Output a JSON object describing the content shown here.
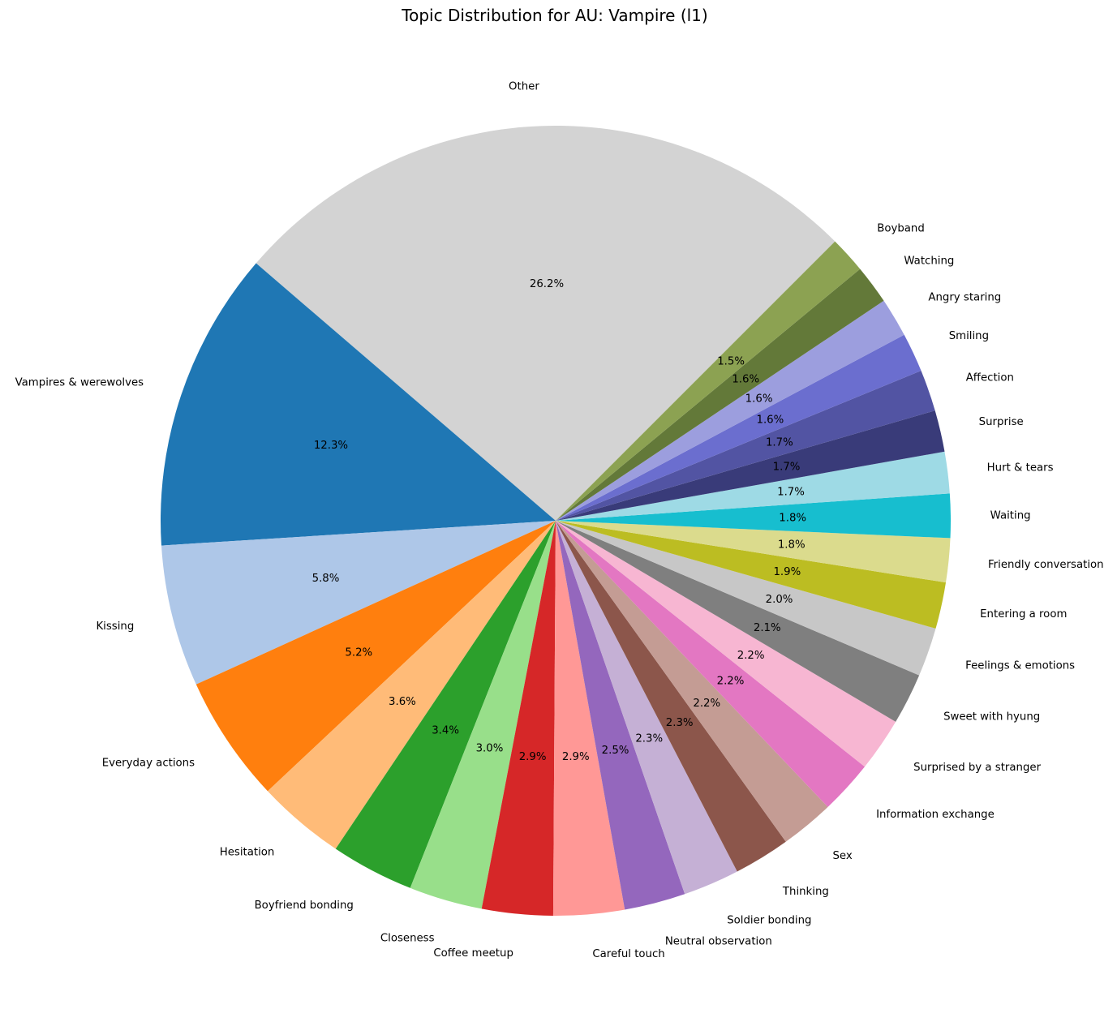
{
  "chart_data": {
    "type": "pie",
    "title": "Topic Distribution for AU: Vampire (l1)",
    "start_angle_deg": 45,
    "direction": "counterclockwise",
    "slices": [
      {
        "label": "Other",
        "value": 26.2,
        "pct_label": "26.2%",
        "color": "#d3d3d3"
      },
      {
        "label": "Vampires & werewolves",
        "value": 12.3,
        "pct_label": "12.3%",
        "color": "#1f77b4"
      },
      {
        "label": "Kissing",
        "value": 5.8,
        "pct_label": "5.8%",
        "color": "#aec7e8"
      },
      {
        "label": "Everyday actions",
        "value": 5.2,
        "pct_label": "5.2%",
        "color": "#ff7f0e"
      },
      {
        "label": "Hesitation",
        "value": 3.6,
        "pct_label": "3.6%",
        "color": "#ffbb78"
      },
      {
        "label": "Boyfriend bonding",
        "value": 3.4,
        "pct_label": "3.4%",
        "color": "#2ca02c"
      },
      {
        "label": "Closeness",
        "value": 3.0,
        "pct_label": "3.0%",
        "color": "#98df8a"
      },
      {
        "label": "Coffee meetup",
        "value": 2.9,
        "pct_label": "2.9%",
        "color": "#d62728"
      },
      {
        "label": "Careful touch",
        "value": 2.9,
        "pct_label": "2.9%",
        "color": "#ff9896"
      },
      {
        "label": "Neutral observation",
        "value": 2.5,
        "pct_label": "2.5%",
        "color": "#9467bd"
      },
      {
        "label": "Soldier bonding",
        "value": 2.3,
        "pct_label": "2.3%",
        "color": "#c5b0d5"
      },
      {
        "label": "Thinking",
        "value": 2.3,
        "pct_label": "2.3%",
        "color": "#8c564b"
      },
      {
        "label": "Sex",
        "value": 2.2,
        "pct_label": "2.2%",
        "color": "#c49c94"
      },
      {
        "label": "Information exchange",
        "value": 2.2,
        "pct_label": "2.2%",
        "color": "#e377c2"
      },
      {
        "label": "Surprised by a stranger",
        "value": 2.2,
        "pct_label": "2.2%",
        "color": "#f7b6d2"
      },
      {
        "label": "Sweet with hyung",
        "value": 2.1,
        "pct_label": "2.1%",
        "color": "#7f7f7f"
      },
      {
        "label": "Feelings & emotions",
        "value": 2.0,
        "pct_label": "2.0%",
        "color": "#c7c7c7"
      },
      {
        "label": "Entering a room",
        "value": 1.9,
        "pct_label": "1.9%",
        "color": "#bcbd22"
      },
      {
        "label": "Friendly conversation",
        "value": 1.8,
        "pct_label": "1.8%",
        "color": "#dbdb8d"
      },
      {
        "label": "Waiting",
        "value": 1.8,
        "pct_label": "1.8%",
        "color": "#17becf"
      },
      {
        "label": "Hurt & tears",
        "value": 1.7,
        "pct_label": "1.7%",
        "color": "#9edae5"
      },
      {
        "label": "Surprise",
        "value": 1.7,
        "pct_label": "1.7%",
        "color": "#393b79"
      },
      {
        "label": "Affection",
        "value": 1.7,
        "pct_label": "1.7%",
        "color": "#5254a3"
      },
      {
        "label": "Smiling",
        "value": 1.6,
        "pct_label": "1.6%",
        "color": "#6b6ecf"
      },
      {
        "label": "Angry staring",
        "value": 1.6,
        "pct_label": "1.6%",
        "color": "#9c9ede"
      },
      {
        "label": "Watching",
        "value": 1.6,
        "pct_label": "1.6%",
        "color": "#637939"
      },
      {
        "label": "Boyband",
        "value": 1.5,
        "pct_label": "1.5%",
        "color": "#8ca252"
      }
    ]
  }
}
